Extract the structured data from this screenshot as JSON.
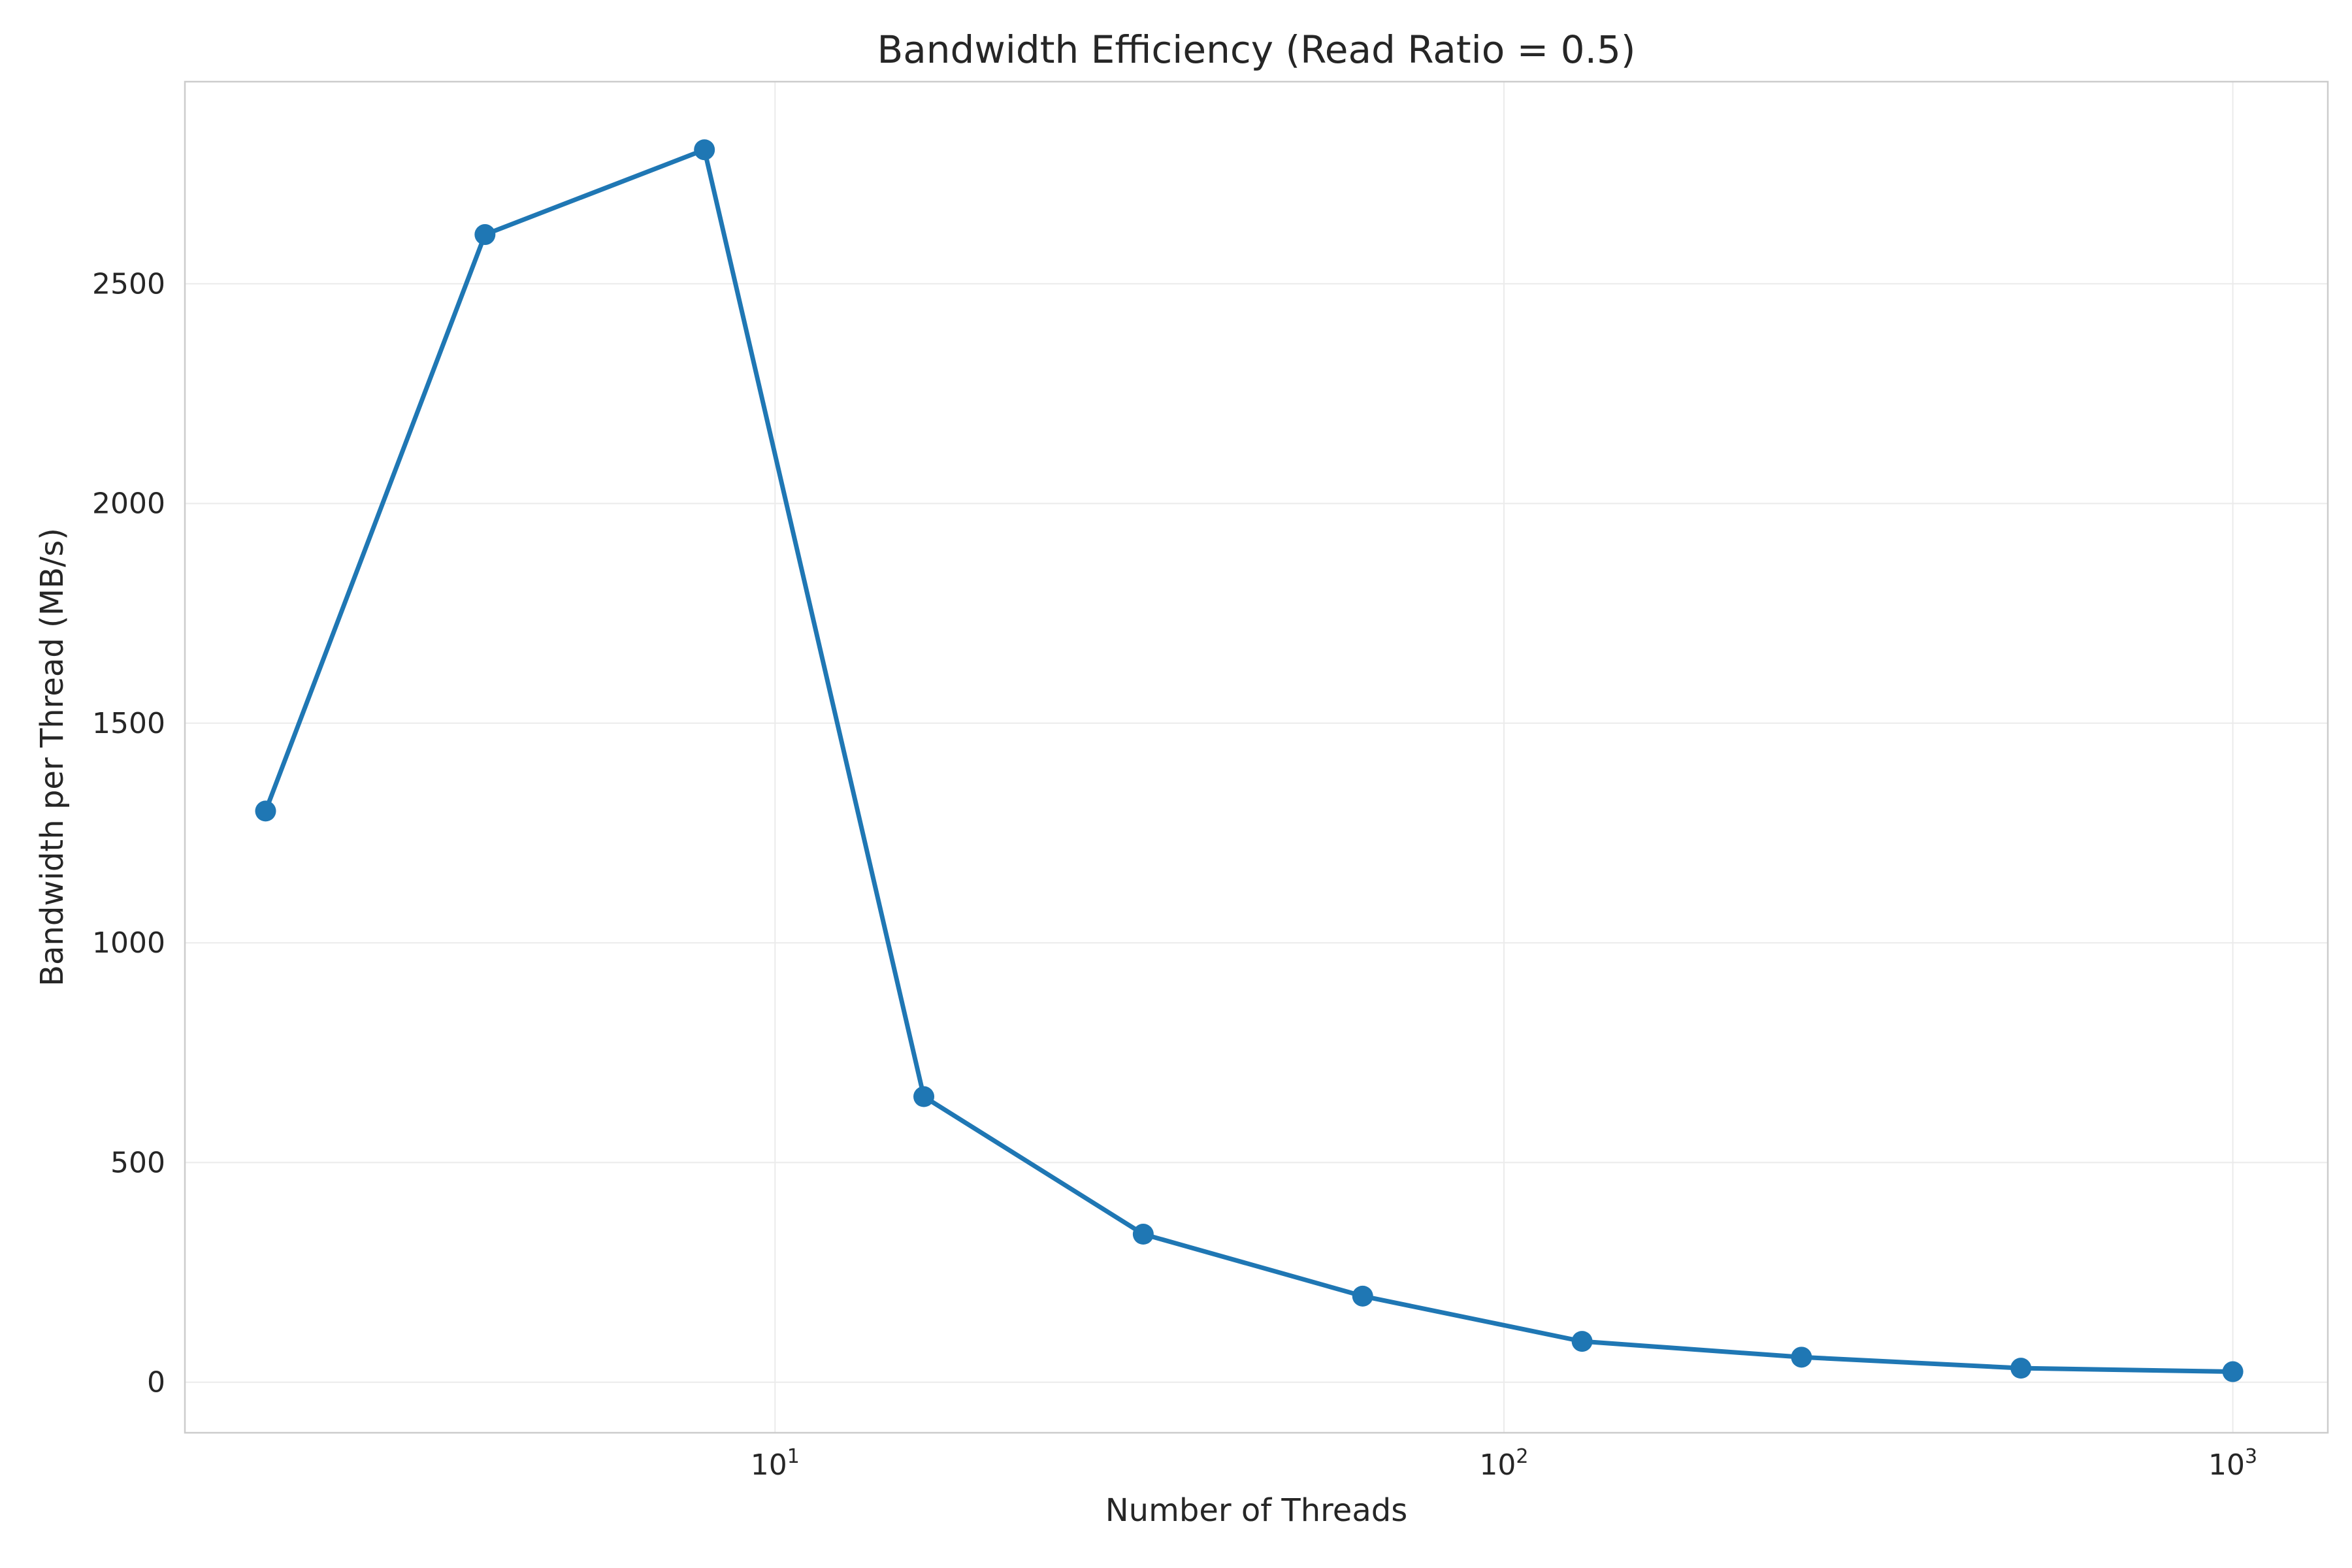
{
  "chart_data": {
    "type": "line",
    "title": "Bandwidth Efficiency (Read Ratio = 0.5)",
    "xlabel": "Number of Threads",
    "ylabel": "Bandwidth per Thread (MB/s)",
    "x_scale": "log",
    "xlim": [
      1.55,
      1350
    ],
    "ylim": [
      -115,
      2960
    ],
    "grid": true,
    "x_ticks": [
      {
        "value": 10,
        "base": "10",
        "exp": "1"
      },
      {
        "value": 100,
        "base": "10",
        "exp": "2"
      },
      {
        "value": 1000,
        "base": "10",
        "exp": "3"
      }
    ],
    "y_ticks": [
      {
        "value": 0,
        "label": "0"
      },
      {
        "value": 500,
        "label": "500"
      },
      {
        "value": 1000,
        "label": "1000"
      },
      {
        "value": 1500,
        "label": "1500"
      },
      {
        "value": 2000,
        "label": "2000"
      },
      {
        "value": 2500,
        "label": "2500"
      }
    ],
    "series": [
      {
        "color": "#1f77b4",
        "x": [
          2,
          4,
          8,
          16,
          32,
          64,
          128,
          256,
          512,
          1000
        ],
        "y": [
          1300,
          2612,
          2805,
          650,
          337,
          196,
          93,
          57,
          32,
          24
        ]
      }
    ]
  }
}
